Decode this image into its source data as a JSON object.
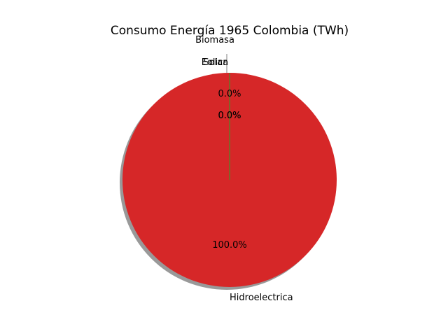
{
  "chart_data": {
    "type": "pie",
    "title": "Consumo Energía 1965 Colombia (TWh)",
    "slices": [
      {
        "label": "Biomasa",
        "value": 0.0,
        "pct_label": "0.0%",
        "color": "#1f77b4"
      },
      {
        "label": "Eolica",
        "value": 0.0,
        "pct_label": "0.0%",
        "color": "#ff7f0e"
      },
      {
        "label": "Solar",
        "value": 0.0,
        "pct_label": "0.0%",
        "color": "#2ca02c"
      },
      {
        "label": "Hidroelectrica",
        "value": 100.0,
        "pct_label": "100.0%",
        "color": "#d62728"
      }
    ],
    "shadow": true
  }
}
